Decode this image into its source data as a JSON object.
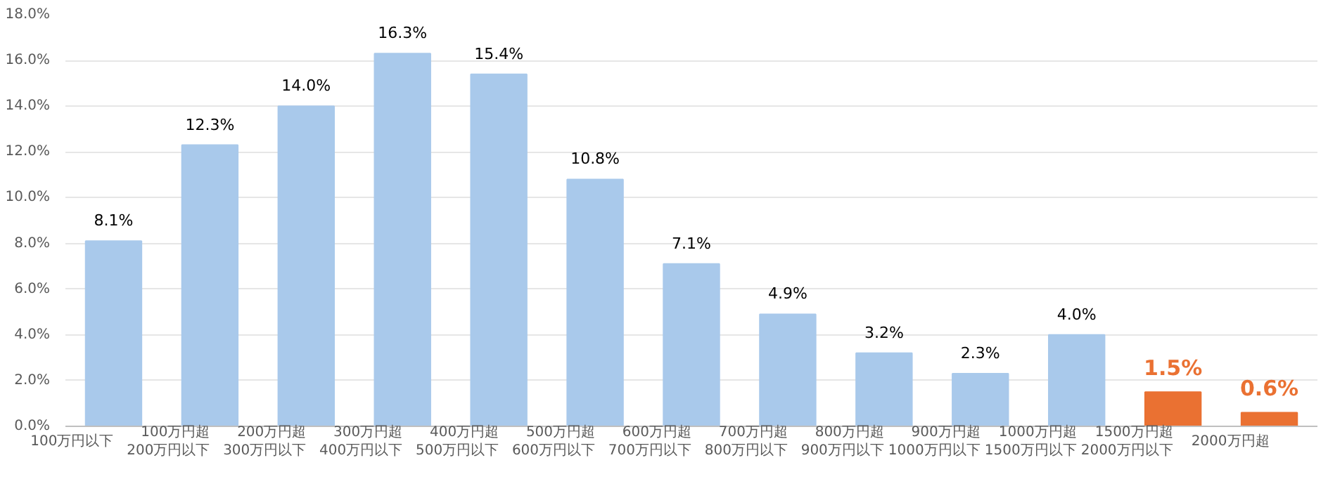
{
  "chart_data": {
    "type": "bar",
    "categories": [
      "100万円以下",
      "100万円超\n200万円以下",
      "200万円超\n300万円以下",
      "300万円超\n400万円以下",
      "400万円超\n500万円以下",
      "500万円超\n600万円以下",
      "600万円超\n700万円以下",
      "700万円超\n800万円以下",
      "800万円超\n900万円以下",
      "900万円超\n1000万円以下",
      "1000万円超\n1500万円以下",
      "1500万円超\n2000万円以下",
      "2000万円超"
    ],
    "values": [
      8.1,
      12.3,
      14.0,
      16.3,
      15.4,
      10.8,
      7.1,
      4.9,
      3.2,
      2.3,
      4.0,
      1.5,
      0.6
    ],
    "colors": [
      "#a9c9eb",
      "#a9c9eb",
      "#a9c9eb",
      "#a9c9eb",
      "#a9c9eb",
      "#a9c9eb",
      "#a9c9eb",
      "#a9c9eb",
      "#a9c9eb",
      "#a9c9eb",
      "#a9c9eb",
      "#ea7132",
      "#ea7132"
    ],
    "value_labels": [
      "8.1%",
      "12.3%",
      "14.0%",
      "16.3%",
      "15.4%",
      "10.8%",
      "7.1%",
      "4.9%",
      "3.2%",
      "2.3%",
      "4.0%",
      "1.5%",
      "0.6%"
    ],
    "ylim": [
      0,
      18
    ],
    "yticks": [
      {
        "value": 0,
        "label": "0.0%"
      },
      {
        "value": 2,
        "label": "2.0%"
      },
      {
        "value": 4,
        "label": "4.0%"
      },
      {
        "value": 6,
        "label": "6.0%"
      },
      {
        "value": 8,
        "label": "8.0%"
      },
      {
        "value": 10,
        "label": "10.0%"
      },
      {
        "value": 12,
        "label": "12.0%"
      },
      {
        "value": 14,
        "label": "14.0%"
      },
      {
        "value": 16,
        "label": "16.0%"
      },
      {
        "value": 18,
        "label": "18.0%"
      }
    ],
    "grid": "y",
    "legend": false
  }
}
